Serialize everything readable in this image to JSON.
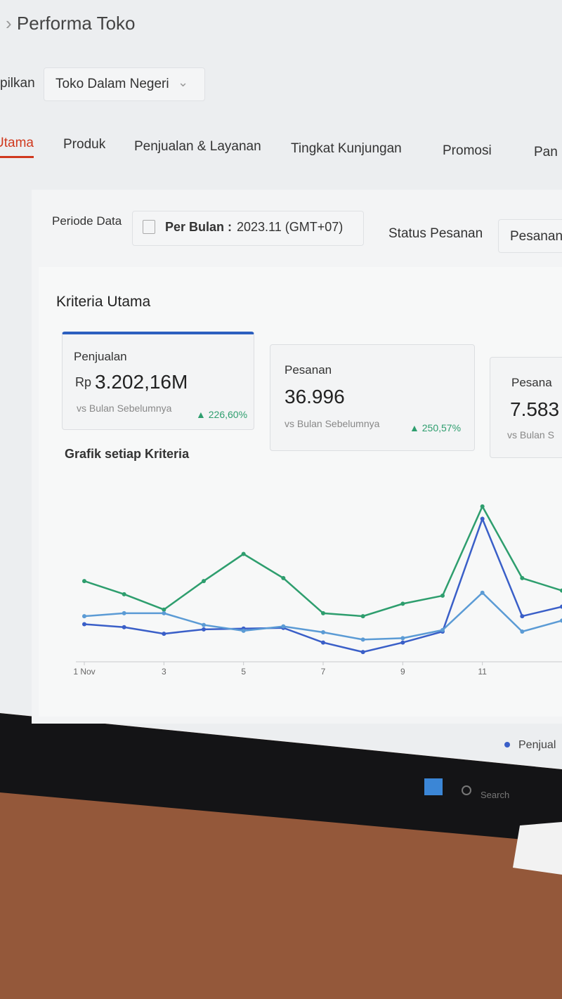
{
  "header": {
    "breadcrumb": "Performa Toko"
  },
  "filter": {
    "label": "pilkan",
    "value": "Toko Dalam Negeri"
  },
  "tabs": [
    "Utama",
    "Produk",
    "Penjualan & Layanan",
    "Tingkat Kunjungan",
    "Promosi",
    "Pan"
  ],
  "period": {
    "label": "Periode Data",
    "mode": "Per Bulan :",
    "value": "2023.11 (GMT+07)",
    "status_label": "Status Pesanan",
    "status_value": "Pesanan"
  },
  "section_title": "Kriteria Utama",
  "cards": [
    {
      "title": "Penjualan",
      "prefix": "Rp",
      "value": "3.202,16M",
      "compare": "vs Bulan Sebelumnya",
      "change": "226,60%"
    },
    {
      "title": "Pesanan",
      "value": "36.996",
      "compare": "vs Bulan Sebelumnya",
      "change": "250,57%"
    },
    {
      "title": "Pesana",
      "value": "7.583",
      "compare": "vs Bulan S"
    }
  ],
  "chart": {
    "type": "line",
    "title": "Grafik setiap Kriteria",
    "x": [
      1,
      2,
      3,
      4,
      5,
      6,
      7,
      8,
      9,
      10,
      11,
      12,
      13
    ],
    "xlim": [
      1,
      13
    ],
    "xticks": [
      {
        "value": 1,
        "label": "1 Nov"
      },
      3,
      5,
      7,
      9,
      11
    ],
    "ylim": [
      0,
      240
    ],
    "legend": "bottom-right",
    "series": [
      {
        "color": "#2e9e6e",
        "values": [
          118,
          100,
          79,
          118,
          155,
          122,
          74,
          70,
          87,
          98,
          220,
          122,
          105
        ]
      },
      {
        "name": "Penjual",
        "color": "#3a5fc8",
        "values": [
          59,
          55,
          46,
          52,
          53,
          54,
          34,
          21,
          34,
          49,
          203,
          70,
          83
        ]
      },
      {
        "color": "#5b9bd5",
        "values": [
          70,
          74,
          74,
          58,
          50,
          56,
          48,
          38,
          40,
          51,
          102,
          49,
          64
        ]
      }
    ]
  },
  "taskbar": {
    "search": "Search"
  }
}
